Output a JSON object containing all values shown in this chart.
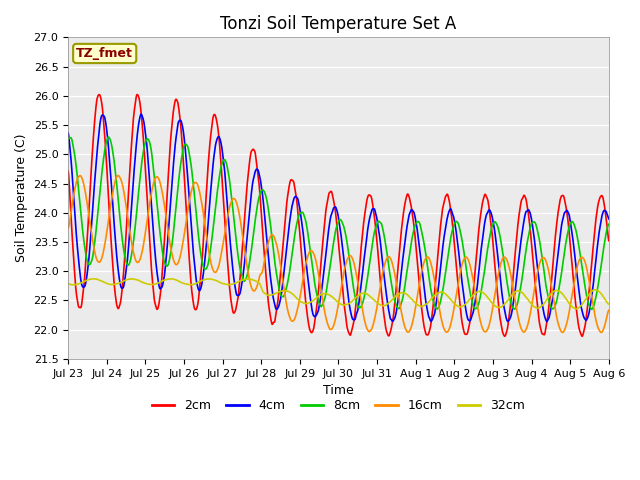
{
  "title": "Tonzi Soil Temperature Set A",
  "xlabel": "Time",
  "ylabel": "Soil Temperature (C)",
  "annotation": "TZ_fmet",
  "annotation_color": "#8B0000",
  "annotation_bg": "#FFFFCC",
  "annotation_border": "#999900",
  "ylim": [
    21.5,
    27.0
  ],
  "yticks": [
    21.5,
    22.0,
    22.5,
    23.0,
    23.5,
    24.0,
    24.5,
    25.0,
    25.5,
    26.0,
    26.5,
    27.0
  ],
  "xtick_labels": [
    "Jul 23",
    "Jul 24",
    "Jul 25",
    "Jul 26",
    "Jul 27",
    "Jul 28",
    "Jul 29",
    "Jul 30",
    "Jul 31",
    "Aug 1",
    "Aug 2",
    "Aug 3",
    "Aug 4",
    "Aug 5",
    "Aug 6"
  ],
  "colors": {
    "2cm": "#FF0000",
    "4cm": "#0000FF",
    "8cm": "#00CC00",
    "16cm": "#FF8C00",
    "32cm": "#CCCC00"
  },
  "line_width": 1.2,
  "plot_bg": "#EBEBEB"
}
